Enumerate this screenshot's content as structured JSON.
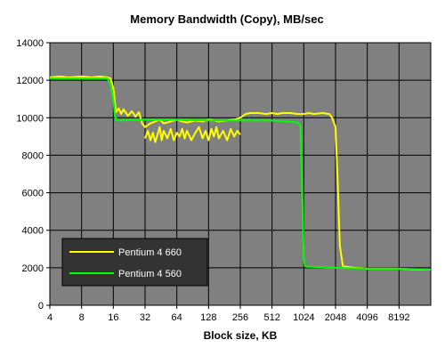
{
  "chart_data": {
    "type": "line",
    "title": "Memory Bandwidth (Copy), MB/sec",
    "xlabel": "Block size, KB",
    "ylabel": "",
    "x_scale": "log2",
    "xlim": [
      4,
      16384
    ],
    "ylim": [
      0,
      14000
    ],
    "x_ticks": [
      4,
      8,
      16,
      32,
      64,
      128,
      256,
      512,
      1024,
      2048,
      4096,
      8192
    ],
    "x_tick_labels": [
      "4",
      "8",
      "16",
      "32",
      "64",
      "128",
      "256",
      "512",
      "1024",
      "2048",
      "4096",
      "8192"
    ],
    "y_ticks": [
      0,
      2000,
      4000,
      6000,
      8000,
      10000,
      12000,
      14000
    ],
    "y_tick_labels": [
      "0",
      "2000",
      "4000",
      "6000",
      "8000",
      "10000",
      "12000",
      "14000"
    ],
    "grid": true,
    "legend_position": "bottom-left",
    "plot_background": "#808080",
    "legend_background": "#333333",
    "series": [
      {
        "name": "Pentium 4 660",
        "color": "#ffff00",
        "x": [
          4,
          5,
          6,
          8,
          10,
          12,
          14,
          15,
          16,
          17,
          18,
          19,
          20,
          22,
          24,
          26,
          28,
          30,
          32,
          36,
          40,
          44,
          48,
          56,
          64,
          72,
          80,
          96,
          112,
          128,
          144,
          160,
          192,
          224,
          256,
          288,
          320,
          384,
          448,
          512,
          576,
          640,
          768,
          896,
          1024,
          1152,
          1280,
          1536,
          1792,
          1900,
          2048,
          2150,
          2250,
          2400,
          2600,
          3072,
          4096,
          6144,
          8192,
          12288,
          16384
        ],
        "y": [
          12150,
          12200,
          12150,
          12200,
          12150,
          12200,
          12150,
          12100,
          11600,
          10300,
          10500,
          10200,
          10450,
          10100,
          10350,
          10050,
          10300,
          9700,
          9500,
          9700,
          9800,
          9900,
          9700,
          9800,
          9900,
          9800,
          9750,
          9850,
          9800,
          9900,
          9850,
          9800,
          9850,
          9900,
          10000,
          10200,
          10250,
          10250,
          10200,
          10250,
          10200,
          10250,
          10250,
          10200,
          10200,
          10250,
          10200,
          10250,
          10200,
          10000,
          9500,
          6500,
          3200,
          2100,
          2050,
          2000,
          1950,
          1950,
          1950,
          1900,
          1900
        ]
      },
      {
        "name": "Pentium 4 560",
        "color": "#00ff00",
        "x": [
          4,
          8,
          14,
          15,
          16,
          16.5,
          17,
          18,
          32,
          64,
          128,
          256,
          512,
          700,
          900,
          950,
          1000,
          1024,
          1050,
          1100,
          1200,
          2048,
          4096,
          8192,
          16384
        ],
        "y": [
          12100,
          12100,
          12100,
          11800,
          11000,
          10200,
          9850,
          9850,
          9900,
          9900,
          9850,
          9850,
          9850,
          9800,
          9750,
          9600,
          5000,
          2500,
          2100,
          2050,
          2050,
          2000,
          1950,
          1950,
          1900
        ]
      },
      {
        "name": "",
        "color": "#ffff00",
        "x": [
          32,
          34,
          36,
          38,
          40,
          42,
          44,
          46,
          48,
          52,
          56,
          60,
          64,
          68,
          72,
          76,
          80,
          88,
          96,
          104,
          112,
          120,
          128,
          136,
          144,
          152,
          160,
          176,
          192,
          208,
          224,
          240,
          256
        ],
        "y": [
          8900,
          9300,
          8800,
          9200,
          8700,
          9100,
          9500,
          8800,
          9300,
          8900,
          9400,
          8800,
          9200,
          9000,
          9400,
          8900,
          9300,
          8800,
          9200,
          9500,
          8900,
          9300,
          8800,
          9400,
          9000,
          9500,
          8900,
          9300,
          8800,
          9400,
          9000,
          9300,
          9100
        ]
      }
    ]
  }
}
